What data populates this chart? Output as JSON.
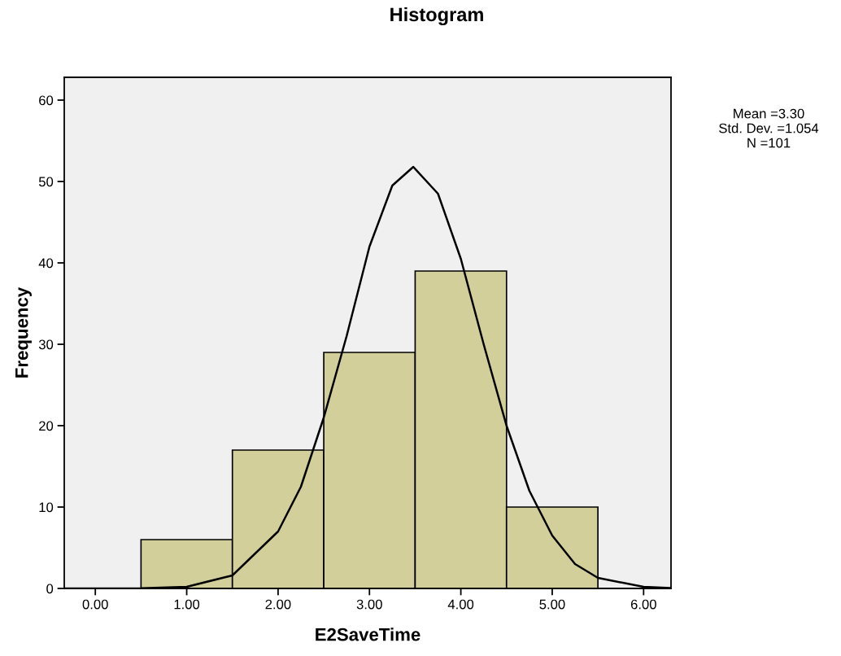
{
  "chart_data": {
    "type": "histogram",
    "title": "Histogram",
    "xlabel": "E2SaveTime",
    "ylabel": "Frequency",
    "bins": [
      0.5,
      1.5,
      2.5,
      3.5,
      4.5,
      5.5
    ],
    "values": [
      6,
      17,
      29,
      39,
      10
    ],
    "color": "#d3cf9a",
    "series": [
      {
        "type": "line",
        "color": "#000000",
        "x": [
          -0.34,
          0,
          0.5,
          1.0,
          1.5,
          2.0,
          2.25,
          2.5,
          2.75,
          3.0,
          3.25,
          3.48,
          3.75,
          4.0,
          4.25,
          4.5,
          4.75,
          5.0,
          5.25,
          5.5,
          6.0,
          6.3
        ],
        "values": [
          0,
          0,
          0.02,
          0.2,
          1.6,
          7,
          12.5,
          21,
          31,
          42,
          49.5,
          51.8,
          48.5,
          40.5,
          30,
          20,
          12,
          6.5,
          3,
          1.3,
          0.2,
          0.05
        ]
      }
    ],
    "xlim": [
      -0.34,
      6.3
    ],
    "ylim": [
      0,
      62.8
    ],
    "xticks": [
      {
        "value": 0,
        "label": "0.00"
      },
      {
        "value": 1,
        "label": "1.00"
      },
      {
        "value": 2,
        "label": "2.00"
      },
      {
        "value": 3,
        "label": "3.00"
      },
      {
        "value": 4,
        "label": "4.00"
      },
      {
        "value": 5,
        "label": "5.00"
      },
      {
        "value": 6,
        "label": "6.00"
      }
    ],
    "yticks": [
      0,
      10,
      20,
      30,
      40,
      50,
      60
    ],
    "grid": false,
    "annotations": [
      "Mean =3.30",
      "Std. Dev. =1.054",
      "N =101"
    ]
  }
}
